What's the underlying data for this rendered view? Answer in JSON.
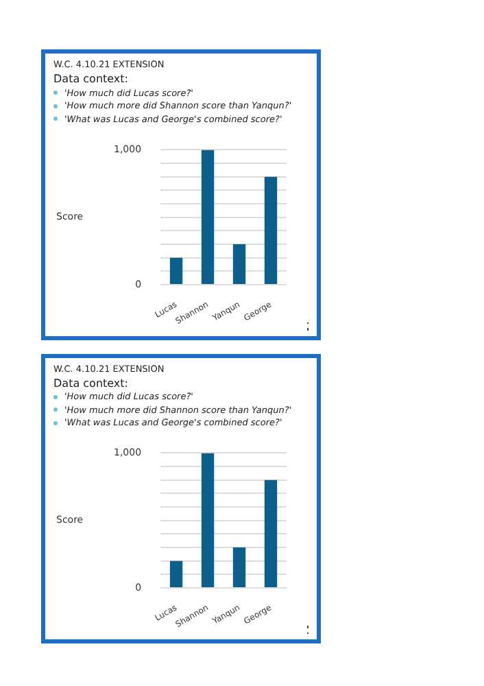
{
  "chart_data": [
    {
      "type": "bar",
      "title": "W.C. 4.10.21 EXTENSION",
      "subtitle": "Data context:",
      "annotations": [
        "'How much did Lucas score?'",
        "'How much more did Shannon score than Yanqun?'",
        "'What was Lucas and George's combined score?'"
      ],
      "ylabel": "Score",
      "categories": [
        "Lucas",
        "Shannon",
        "Yanqun",
        "George"
      ],
      "values": [
        200,
        1000,
        300,
        800
      ],
      "color": "#0b5f8a",
      "ylim": [
        0,
        1000
      ],
      "yticks": [
        0,
        {
          "value": 100,
          "label": null
        },
        {
          "value": 200,
          "label": null
        },
        {
          "value": 300,
          "label": null
        },
        {
          "value": 400,
          "label": null
        },
        {
          "value": 500,
          "label": null
        },
        {
          "value": 600,
          "label": null
        },
        {
          "value": 700,
          "label": null
        },
        {
          "value": 800,
          "label": null
        },
        {
          "value": 900,
          "label": null
        },
        {
          "value": 1000,
          "label": "1,000"
        }
      ],
      "grid": "y",
      "legend": false
    },
    {
      "type": "bar",
      "title": "W.C. 4.10.21 EXTENSION",
      "subtitle": "Data context:",
      "annotations": [
        "'How much did Lucas score?'",
        "'How much more did Shannon score than Yanqun?'",
        "'What was Lucas and George's combined score?'"
      ],
      "ylabel": "Score",
      "categories": [
        "Lucas",
        "Shannon",
        "Yanqun",
        "George"
      ],
      "values": [
        200,
        1000,
        300,
        800
      ],
      "color": "#0b5f8a",
      "ylim": [
        0,
        1000
      ],
      "yticks": [
        0,
        {
          "value": 100,
          "label": null
        },
        {
          "value": 200,
          "label": null
        },
        {
          "value": 300,
          "label": null
        },
        {
          "value": 400,
          "label": null
        },
        {
          "value": 500,
          "label": null
        },
        {
          "value": 600,
          "label": null
        },
        {
          "value": 700,
          "label": null
        },
        {
          "value": 800,
          "label": null
        },
        {
          "value": 900,
          "label": null
        },
        {
          "value": 1000,
          "label": "1,000"
        }
      ],
      "grid": "y",
      "legend": false
    }
  ]
}
